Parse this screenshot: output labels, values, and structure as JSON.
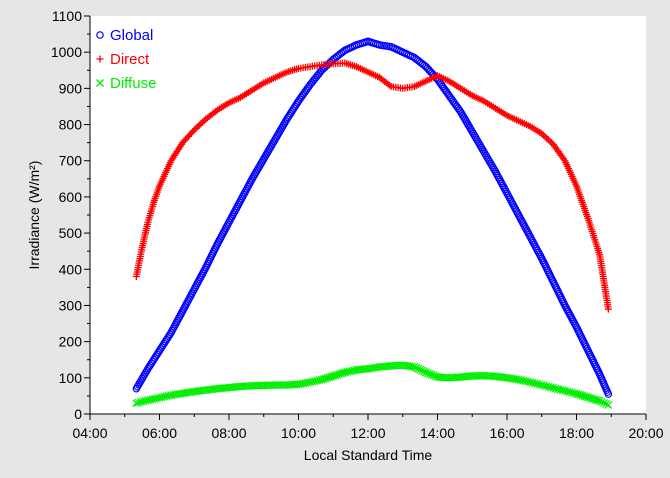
{
  "chart_data": {
    "type": "scatter",
    "title": "",
    "xlabel": "Local Standard Time",
    "ylabel": "Irradiance (W/m²)",
    "xlim": [
      "04:00",
      "20:00"
    ],
    "ylim": [
      0,
      1100
    ],
    "x_ticks": [
      "04:00",
      "06:00",
      "08:00",
      "10:00",
      "12:00",
      "14:00",
      "16:00",
      "18:00",
      "20:00"
    ],
    "y_ticks": [
      0,
      100,
      200,
      300,
      400,
      500,
      600,
      700,
      800,
      900,
      1000,
      1100
    ],
    "grid": false,
    "legend": "top-left",
    "series": [
      {
        "name": "Global",
        "marker": "circle",
        "color": "#0000ff",
        "points": [
          [
            "05:20",
            70
          ],
          [
            "05:40",
            125
          ],
          [
            "06:00",
            175
          ],
          [
            "06:20",
            225
          ],
          [
            "06:40",
            285
          ],
          [
            "07:00",
            345
          ],
          [
            "07:20",
            405
          ],
          [
            "07:40",
            470
          ],
          [
            "08:00",
            530
          ],
          [
            "08:20",
            590
          ],
          [
            "08:40",
            650
          ],
          [
            "09:00",
            705
          ],
          [
            "09:20",
            760
          ],
          [
            "09:40",
            815
          ],
          [
            "10:00",
            865
          ],
          [
            "10:20",
            910
          ],
          [
            "10:40",
            950
          ],
          [
            "11:00",
            980
          ],
          [
            "11:20",
            1005
          ],
          [
            "11:40",
            1020
          ],
          [
            "12:00",
            1030
          ],
          [
            "12:20",
            1020
          ],
          [
            "12:40",
            1015
          ],
          [
            "13:00",
            1000
          ],
          [
            "13:20",
            985
          ],
          [
            "13:40",
            960
          ],
          [
            "14:00",
            925
          ],
          [
            "14:20",
            880
          ],
          [
            "14:40",
            835
          ],
          [
            "15:00",
            780
          ],
          [
            "15:20",
            725
          ],
          [
            "15:40",
            670
          ],
          [
            "16:00",
            610
          ],
          [
            "16:20",
            550
          ],
          [
            "16:40",
            490
          ],
          [
            "17:00",
            430
          ],
          [
            "17:20",
            365
          ],
          [
            "17:40",
            300
          ],
          [
            "18:00",
            240
          ],
          [
            "18:20",
            175
          ],
          [
            "18:40",
            110
          ],
          [
            "18:55",
            55
          ]
        ]
      },
      {
        "name": "Direct",
        "marker": "plus",
        "color": "#ff0000",
        "points": [
          [
            "05:20",
            380
          ],
          [
            "05:30",
            460
          ],
          [
            "05:40",
            530
          ],
          [
            "05:50",
            585
          ],
          [
            "06:00",
            630
          ],
          [
            "06:20",
            700
          ],
          [
            "06:40",
            750
          ],
          [
            "07:00",
            785
          ],
          [
            "07:20",
            815
          ],
          [
            "07:40",
            840
          ],
          [
            "08:00",
            860
          ],
          [
            "08:20",
            875
          ],
          [
            "08:40",
            895
          ],
          [
            "09:00",
            915
          ],
          [
            "09:20",
            930
          ],
          [
            "09:40",
            945
          ],
          [
            "10:00",
            955
          ],
          [
            "10:20",
            960
          ],
          [
            "10:40",
            965
          ],
          [
            "11:00",
            968
          ],
          [
            "11:20",
            970
          ],
          [
            "11:40",
            960
          ],
          [
            "12:00",
            945
          ],
          [
            "12:20",
            930
          ],
          [
            "12:40",
            905
          ],
          [
            "13:00",
            900
          ],
          [
            "13:20",
            905
          ],
          [
            "13:40",
            920
          ],
          [
            "14:00",
            935
          ],
          [
            "14:20",
            920
          ],
          [
            "14:40",
            900
          ],
          [
            "15:00",
            880
          ],
          [
            "15:20",
            865
          ],
          [
            "15:40",
            845
          ],
          [
            "16:00",
            825
          ],
          [
            "16:20",
            810
          ],
          [
            "16:40",
            795
          ],
          [
            "17:00",
            775
          ],
          [
            "17:20",
            745
          ],
          [
            "17:40",
            700
          ],
          [
            "18:00",
            630
          ],
          [
            "18:20",
            540
          ],
          [
            "18:40",
            440
          ],
          [
            "18:55",
            290
          ]
        ]
      },
      {
        "name": "Diffuse",
        "marker": "cross",
        "color": "#00ee00",
        "points": [
          [
            "05:20",
            30
          ],
          [
            "05:40",
            38
          ],
          [
            "06:00",
            45
          ],
          [
            "06:20",
            52
          ],
          [
            "06:40",
            57
          ],
          [
            "07:00",
            62
          ],
          [
            "07:20",
            66
          ],
          [
            "07:40",
            70
          ],
          [
            "08:00",
            73
          ],
          [
            "08:20",
            76
          ],
          [
            "08:40",
            78
          ],
          [
            "09:00",
            79
          ],
          [
            "09:20",
            80
          ],
          [
            "09:40",
            80
          ],
          [
            "10:00",
            82
          ],
          [
            "10:20",
            88
          ],
          [
            "10:40",
            95
          ],
          [
            "11:00",
            105
          ],
          [
            "11:20",
            115
          ],
          [
            "11:40",
            122
          ],
          [
            "12:00",
            125
          ],
          [
            "12:20",
            130
          ],
          [
            "12:40",
            133
          ],
          [
            "13:00",
            135
          ],
          [
            "13:20",
            130
          ],
          [
            "13:40",
            115
          ],
          [
            "14:00",
            102
          ],
          [
            "14:20",
            100
          ],
          [
            "14:40",
            102
          ],
          [
            "15:00",
            105
          ],
          [
            "15:20",
            106
          ],
          [
            "15:40",
            104
          ],
          [
            "16:00",
            100
          ],
          [
            "16:20",
            95
          ],
          [
            "16:40",
            88
          ],
          [
            "17:00",
            80
          ],
          [
            "17:20",
            72
          ],
          [
            "17:40",
            64
          ],
          [
            "18:00",
            56
          ],
          [
            "18:20",
            46
          ],
          [
            "18:40",
            36
          ],
          [
            "18:55",
            25
          ]
        ]
      }
    ]
  }
}
